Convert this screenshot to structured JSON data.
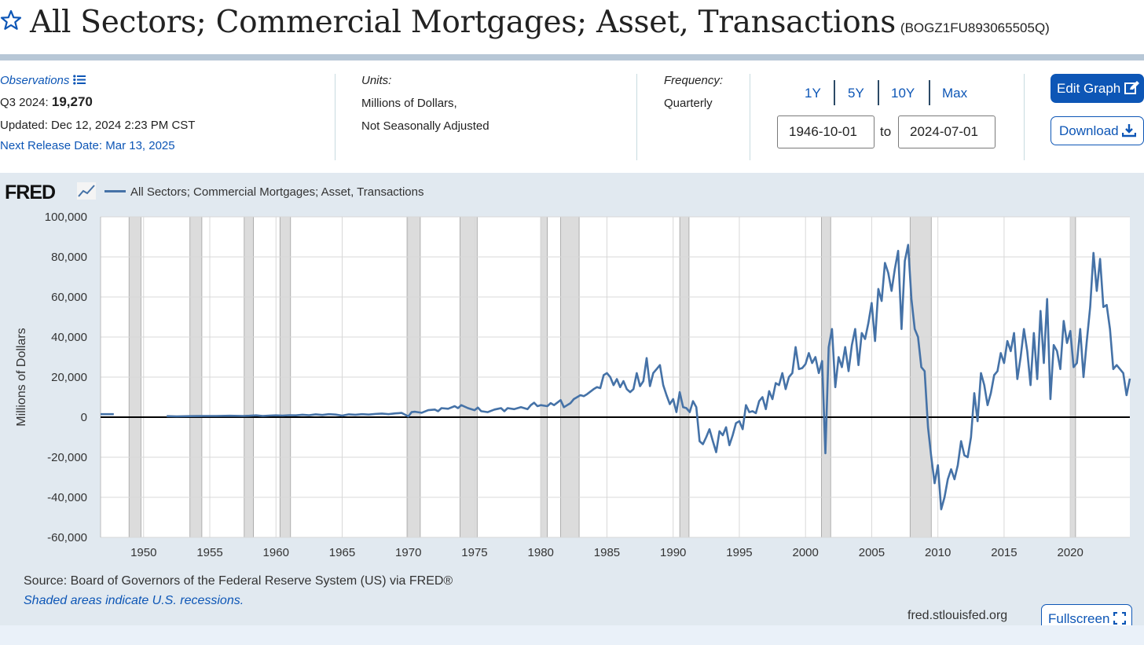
{
  "header": {
    "title": "All Sectors; Commercial Mortgages; Asset, Transactions",
    "series_id": "(BOGZ1FU893065505Q)"
  },
  "observations": {
    "label": "Observations",
    "period": "Q3 2024:",
    "value": "19,270",
    "updated": "Updated: Dec 12, 2024 2:23 PM CST",
    "next_release": "Next Release Date: Mar 13, 2025"
  },
  "units": {
    "label": "Units:",
    "line1": "Millions of Dollars,",
    "line2": "Not Seasonally Adjusted"
  },
  "frequency": {
    "label": "Frequency:",
    "value": "Quarterly"
  },
  "range": {
    "buttons": [
      "1Y",
      "5Y",
      "10Y",
      "Max"
    ],
    "start": "1946-10-01",
    "to": "to",
    "end": "2024-07-01"
  },
  "actions": {
    "edit": "Edit Graph",
    "download": "Download",
    "fullscreen": "Fullscreen"
  },
  "footer": {
    "source": "Source: Board of Governors of the Federal Reserve System (US) via FRED®",
    "recessions": "Shaded areas indicate U.S. recessions.",
    "url": "fred.stlouisfed.org"
  },
  "colors": {
    "line": "#4572a7",
    "recession": "#dcdcdc",
    "panel": "#e1e9f0",
    "accent": "#0d56b6"
  },
  "chart_data": {
    "type": "line",
    "logo": "FRED",
    "legend": "All Sectors; Commercial Mortgages; Asset, Transactions",
    "ylabel": "Millions of Dollars",
    "xlim": [
      1946.75,
      2024.5
    ],
    "ylim": [
      -60000,
      100000
    ],
    "yticks": [
      100000,
      80000,
      60000,
      40000,
      20000,
      0,
      -20000,
      -40000,
      -60000
    ],
    "ytick_labels": [
      "100,000",
      "80,000",
      "60,000",
      "40,000",
      "20,000",
      "0",
      "-20,000",
      "-40,000",
      "-60,000"
    ],
    "xticks": [
      1950,
      1955,
      1960,
      1965,
      1970,
      1975,
      1980,
      1985,
      1990,
      1995,
      2000,
      2005,
      2010,
      2015,
      2020
    ],
    "recessions": [
      [
        1948.9,
        1949.8
      ],
      [
        1953.5,
        1954.4
      ],
      [
        1957.6,
        1958.3
      ],
      [
        1960.3,
        1961.1
      ],
      [
        1969.9,
        1970.9
      ],
      [
        1973.9,
        1975.2
      ],
      [
        1980.0,
        1980.5
      ],
      [
        1981.5,
        1982.9
      ],
      [
        1990.5,
        1991.2
      ],
      [
        2001.2,
        2001.9
      ],
      [
        2007.9,
        2009.5
      ],
      [
        2020.0,
        2020.4
      ]
    ],
    "series": [
      {
        "name": "All Sectors; Commercial Mortgages; Asset, Transactions",
        "segments": [
          [
            [
              1946.75,
              1500
            ],
            [
              1947.0,
              1500
            ],
            [
              1947.25,
              1500
            ],
            [
              1947.5,
              1500
            ],
            [
              1947.75,
              1500
            ]
          ],
          [
            [
              1951.75,
              500
            ],
            [
              1952.5,
              400
            ],
            [
              1953.5,
              500
            ],
            [
              1954.5,
              600
            ],
            [
              1955.5,
              600
            ],
            [
              1956.5,
              700
            ],
            [
              1957.5,
              600
            ],
            [
              1958.0,
              700
            ],
            [
              1958.5,
              900
            ],
            [
              1959.0,
              600
            ],
            [
              1959.5,
              800
            ],
            [
              1960.0,
              900
            ],
            [
              1960.5,
              800
            ],
            [
              1961.0,
              1000
            ],
            [
              1961.5,
              900
            ],
            [
              1962.0,
              1200
            ],
            [
              1962.5,
              1000
            ],
            [
              1963.0,
              1400
            ],
            [
              1963.5,
              1100
            ],
            [
              1964.0,
              1500
            ],
            [
              1964.5,
              1300
            ],
            [
              1965.0,
              800
            ],
            [
              1965.5,
              1400
            ],
            [
              1966.0,
              1200
            ],
            [
              1966.5,
              1500
            ],
            [
              1967.0,
              1300
            ],
            [
              1967.5,
              1600
            ],
            [
              1968.0,
              1800
            ],
            [
              1968.5,
              1500
            ],
            [
              1969.0,
              1900
            ],
            [
              1969.5,
              2100
            ],
            [
              1970.0,
              400
            ],
            [
              1970.25,
              2500
            ],
            [
              1970.5,
              2700
            ],
            [
              1971.0,
              2200
            ],
            [
              1971.5,
              3500
            ],
            [
              1972.0,
              3800
            ],
            [
              1972.25,
              3000
            ],
            [
              1972.5,
              4500
            ],
            [
              1973.0,
              4200
            ],
            [
              1973.5,
              5500
            ],
            [
              1973.75,
              4500
            ],
            [
              1974.0,
              6000
            ],
            [
              1974.5,
              4500
            ],
            [
              1975.0,
              3500
            ],
            [
              1975.25,
              4800
            ],
            [
              1975.5,
              3000
            ],
            [
              1976.0,
              2500
            ],
            [
              1976.5,
              3800
            ],
            [
              1977.0,
              4500
            ],
            [
              1977.25,
              3000
            ],
            [
              1977.5,
              4500
            ],
            [
              1978.0,
              4000
            ],
            [
              1978.5,
              5000
            ],
            [
              1979.0,
              4000
            ],
            [
              1979.25,
              6000
            ],
            [
              1979.5,
              7200
            ],
            [
              1979.75,
              5500
            ],
            [
              1980.0,
              6000
            ],
            [
              1980.5,
              5500
            ],
            [
              1980.75,
              7000
            ],
            [
              1981.0,
              6000
            ],
            [
              1981.5,
              8500
            ],
            [
              1981.75,
              5000
            ],
            [
              1982.0,
              6000
            ],
            [
              1982.25,
              7000
            ],
            [
              1982.5,
              9000
            ],
            [
              1983.0,
              11000
            ],
            [
              1983.25,
              10500
            ],
            [
              1983.5,
              11500
            ],
            [
              1984.0,
              14000
            ],
            [
              1984.25,
              15000
            ],
            [
              1984.5,
              14500
            ],
            [
              1984.75,
              21000
            ],
            [
              1985.0,
              22000
            ],
            [
              1985.25,
              20000
            ],
            [
              1985.5,
              16000
            ],
            [
              1985.75,
              19000
            ],
            [
              1986.0,
              15000
            ],
            [
              1986.25,
              18000
            ],
            [
              1986.5,
              14000
            ],
            [
              1986.75,
              12500
            ],
            [
              1987.0,
              14000
            ],
            [
              1987.25,
              22000
            ],
            [
              1987.5,
              15500
            ],
            [
              1987.75,
              18000
            ],
            [
              1988.0,
              29500
            ],
            [
              1988.25,
              15500
            ],
            [
              1988.5,
              22000
            ],
            [
              1988.75,
              24000
            ],
            [
              1989.0,
              26000
            ],
            [
              1989.25,
              16000
            ],
            [
              1989.5,
              11000
            ],
            [
              1989.75,
              6500
            ],
            [
              1990.0,
              9000
            ],
            [
              1990.25,
              2500
            ],
            [
              1990.5,
              12500
            ],
            [
              1990.75,
              5000
            ],
            [
              1991.0,
              4500
            ],
            [
              1991.25,
              2500
            ],
            [
              1991.5,
              8000
            ],
            [
              1991.75,
              5000
            ],
            [
              1992.0,
              -12000
            ],
            [
              1992.25,
              -13500
            ],
            [
              1992.5,
              -10000
            ],
            [
              1992.75,
              -6000
            ],
            [
              1993.0,
              -12000
            ],
            [
              1993.25,
              -17500
            ],
            [
              1993.5,
              -7000
            ],
            [
              1993.75,
              -9000
            ],
            [
              1994.0,
              -5000
            ],
            [
              1994.25,
              -14000
            ],
            [
              1994.5,
              -9000
            ],
            [
              1994.75,
              -3000
            ],
            [
              1995.0,
              -2000
            ],
            [
              1995.25,
              -6000
            ],
            [
              1995.5,
              6000
            ],
            [
              1995.75,
              2500
            ],
            [
              1996.0,
              3000
            ],
            [
              1996.25,
              2000
            ],
            [
              1996.5,
              8000
            ],
            [
              1996.75,
              10000
            ],
            [
              1997.0,
              4000
            ],
            [
              1997.25,
              13000
            ],
            [
              1997.5,
              9000
            ],
            [
              1997.75,
              17000
            ],
            [
              1998.0,
              16000
            ],
            [
              1998.25,
              22000
            ],
            [
              1998.5,
              14000
            ],
            [
              1998.75,
              20000
            ],
            [
              1999.0,
              22000
            ],
            [
              1999.25,
              35000
            ],
            [
              1999.5,
              24000
            ],
            [
              1999.75,
              24500
            ],
            [
              2000.0,
              26500
            ],
            [
              2000.25,
              32000
            ],
            [
              2000.5,
              27000
            ],
            [
              2000.75,
              30000
            ],
            [
              2001.0,
              22000
            ],
            [
              2001.25,
              28000
            ],
            [
              2001.5,
              -18000
            ],
            [
              2001.75,
              35000
            ],
            [
              2002.0,
              44000
            ],
            [
              2002.25,
              15000
            ],
            [
              2002.5,
              30000
            ],
            [
              2002.75,
              25000
            ],
            [
              2003.0,
              35000
            ],
            [
              2003.25,
              23000
            ],
            [
              2003.5,
              36000
            ],
            [
              2003.75,
              44000
            ],
            [
              2004.0,
              26000
            ],
            [
              2004.25,
              42000
            ],
            [
              2004.5,
              39000
            ],
            [
              2004.75,
              47000
            ],
            [
              2005.0,
              57000
            ],
            [
              2005.25,
              38000
            ],
            [
              2005.5,
              64000
            ],
            [
              2005.75,
              58000
            ],
            [
              2006.0,
              77000
            ],
            [
              2006.25,
              72000
            ],
            [
              2006.5,
              63000
            ],
            [
              2006.75,
              74000
            ],
            [
              2007.0,
              83000
            ],
            [
              2007.25,
              44000
            ],
            [
              2007.5,
              78000
            ],
            [
              2007.75,
              86000
            ],
            [
              2008.0,
              59000
            ],
            [
              2008.25,
              44000
            ],
            [
              2008.5,
              40000
            ],
            [
              2008.75,
              25000
            ],
            [
              2009.0,
              23000
            ],
            [
              2009.25,
              -5000
            ],
            [
              2009.5,
              -20000
            ],
            [
              2009.75,
              -33000
            ],
            [
              2010.0,
              -24000
            ],
            [
              2010.25,
              -46000
            ],
            [
              2010.5,
              -40000
            ],
            [
              2010.75,
              -31000
            ],
            [
              2011.0,
              -26000
            ],
            [
              2011.25,
              -31000
            ],
            [
              2011.5,
              -24000
            ],
            [
              2011.75,
              -12000
            ],
            [
              2012.0,
              -19000
            ],
            [
              2012.25,
              -20000
            ],
            [
              2012.5,
              -10000
            ],
            [
              2012.75,
              12000
            ],
            [
              2013.0,
              -2000
            ],
            [
              2013.25,
              22000
            ],
            [
              2013.5,
              16000
            ],
            [
              2013.75,
              6000
            ],
            [
              2014.0,
              12000
            ],
            [
              2014.25,
              21000
            ],
            [
              2014.5,
              23000
            ],
            [
              2014.75,
              32000
            ],
            [
              2015.0,
              27000
            ],
            [
              2015.25,
              38000
            ],
            [
              2015.5,
              33000
            ],
            [
              2015.75,
              42000
            ],
            [
              2016.0,
              19000
            ],
            [
              2016.25,
              30000
            ],
            [
              2016.5,
              44000
            ],
            [
              2016.75,
              33000
            ],
            [
              2017.0,
              16000
            ],
            [
              2017.25,
              42000
            ],
            [
              2017.5,
              19000
            ],
            [
              2017.75,
              53000
            ],
            [
              2018.0,
              27000
            ],
            [
              2018.25,
              59000
            ],
            [
              2018.5,
              9000
            ],
            [
              2018.75,
              36000
            ],
            [
              2019.0,
              33000
            ],
            [
              2019.25,
              24000
            ],
            [
              2019.5,
              48000
            ],
            [
              2019.75,
              37000
            ],
            [
              2020.0,
              43000
            ],
            [
              2020.25,
              25000
            ],
            [
              2020.5,
              27000
            ],
            [
              2020.75,
              44000
            ],
            [
              2021.0,
              20000
            ],
            [
              2021.25,
              38000
            ],
            [
              2021.5,
              55000
            ],
            [
              2021.75,
              82000
            ],
            [
              2022.0,
              63000
            ],
            [
              2022.25,
              79000
            ],
            [
              2022.5,
              55000
            ],
            [
              2022.75,
              56000
            ],
            [
              2023.0,
              44000
            ],
            [
              2023.25,
              24000
            ],
            [
              2023.5,
              26000
            ],
            [
              2023.75,
              24000
            ],
            [
              2024.0,
              22000
            ],
            [
              2024.25,
              11000
            ],
            [
              2024.5,
              19270
            ]
          ]
        ]
      }
    ]
  }
}
